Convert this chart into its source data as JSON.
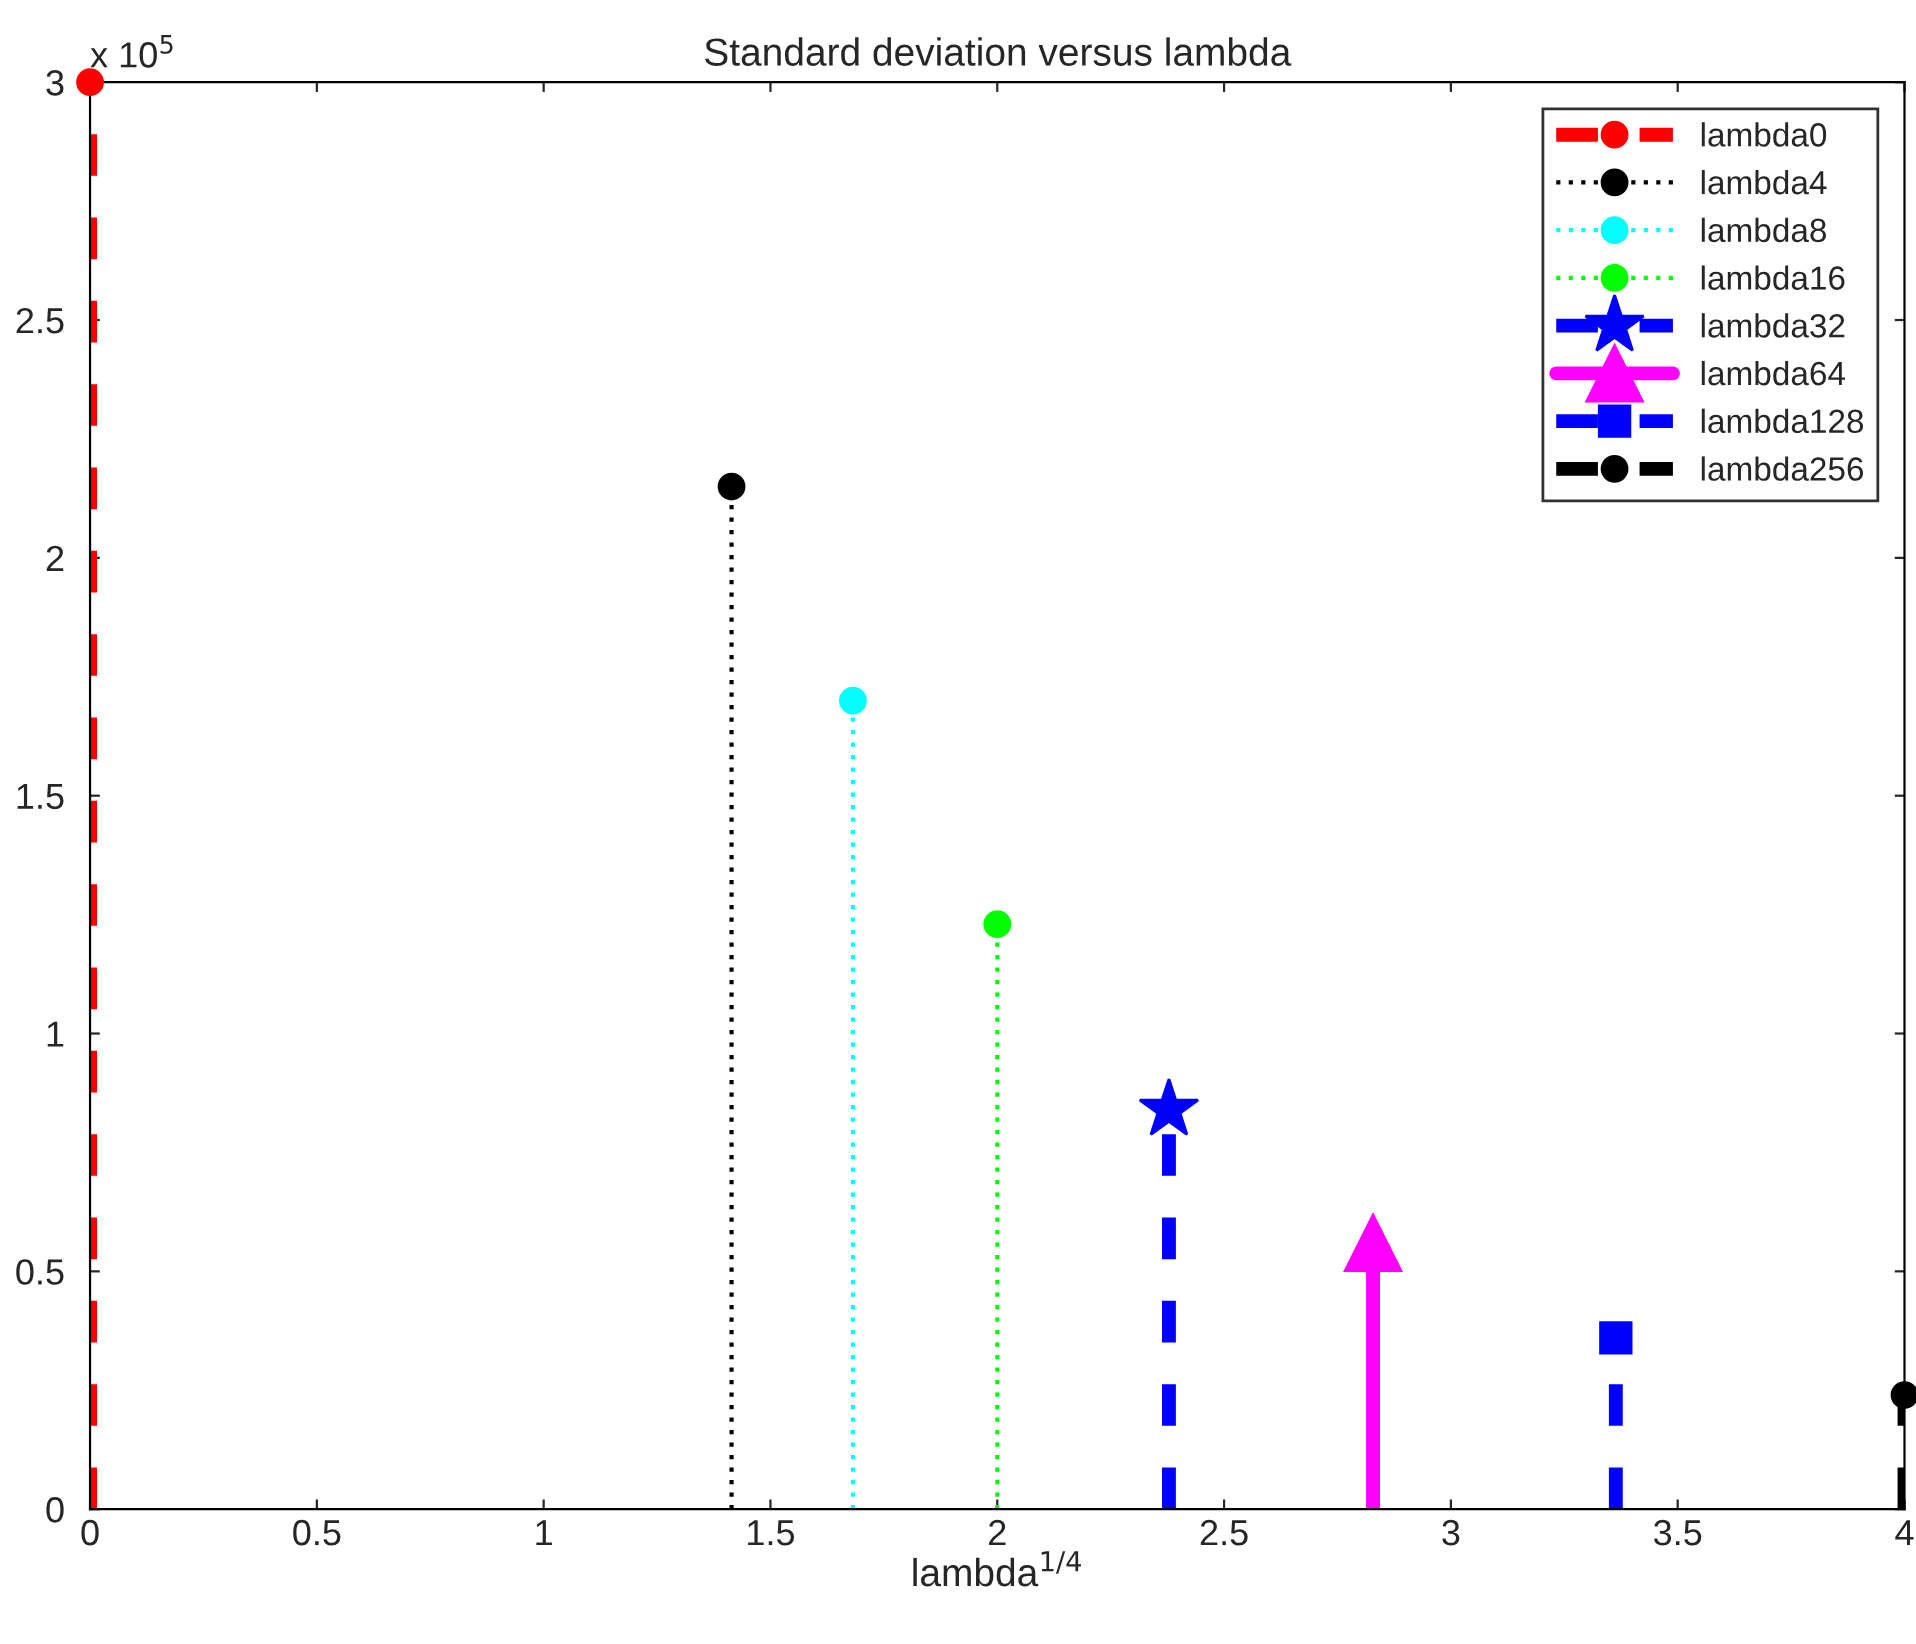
{
  "chart_data": {
    "type": "lollipop",
    "title": "Standard deviation versus lambda",
    "xlabel": "lambda$^{1/4}$",
    "xlim": [
      0,
      4
    ],
    "xticks": [
      0,
      0.5,
      1,
      1.5,
      2,
      2.5,
      3,
      3.5,
      4
    ],
    "ylim": [
      0,
      3
    ],
    "yticks": [
      0,
      0.5,
      1,
      1.5,
      2,
      2.5,
      3
    ],
    "annotations": [
      "x 10$^{5}$"
    ],
    "grid": false,
    "legend": "top right",
    "series": [
      {
        "name": "lambda0",
        "color": "#ff0000",
        "x": [
          0
        ],
        "values": [
          3
        ],
        "marker": "circle",
        "line_style": "dashed"
      },
      {
        "name": "lambda4",
        "color": "#000000",
        "x": [
          1.4142
        ],
        "values": [
          2.15
        ],
        "marker": "circle",
        "line_style": "dotted"
      },
      {
        "name": "lambda8",
        "color": "#00ffff",
        "x": [
          1.6818
        ],
        "values": [
          1.7
        ],
        "marker": "circle",
        "line_style": "dotted"
      },
      {
        "name": "lambda16",
        "color": "#00ff00",
        "x": [
          2
        ],
        "values": [
          1.23
        ],
        "marker": "circle",
        "line_style": "dotted"
      },
      {
        "name": "lambda32",
        "color": "#0000ff",
        "x": [
          2.3784
        ],
        "values": [
          0.84
        ],
        "marker": "star",
        "line_style": "dashed"
      },
      {
        "name": "lambda64",
        "color": "#ff00ff",
        "x": [
          2.8284
        ],
        "values": [
          0.56
        ],
        "marker": "triangle",
        "line_style": "solid"
      },
      {
        "name": "lambda128",
        "color": "#0000ff",
        "x": [
          3.3636
        ],
        "values": [
          0.36
        ],
        "marker": "square",
        "line_style": "dashed"
      },
      {
        "name": "lambda256",
        "color": "#000000",
        "x": [
          4
        ],
        "values": [
          0.24
        ],
        "marker": "circle",
        "line_style": "dashed"
      }
    ]
  }
}
